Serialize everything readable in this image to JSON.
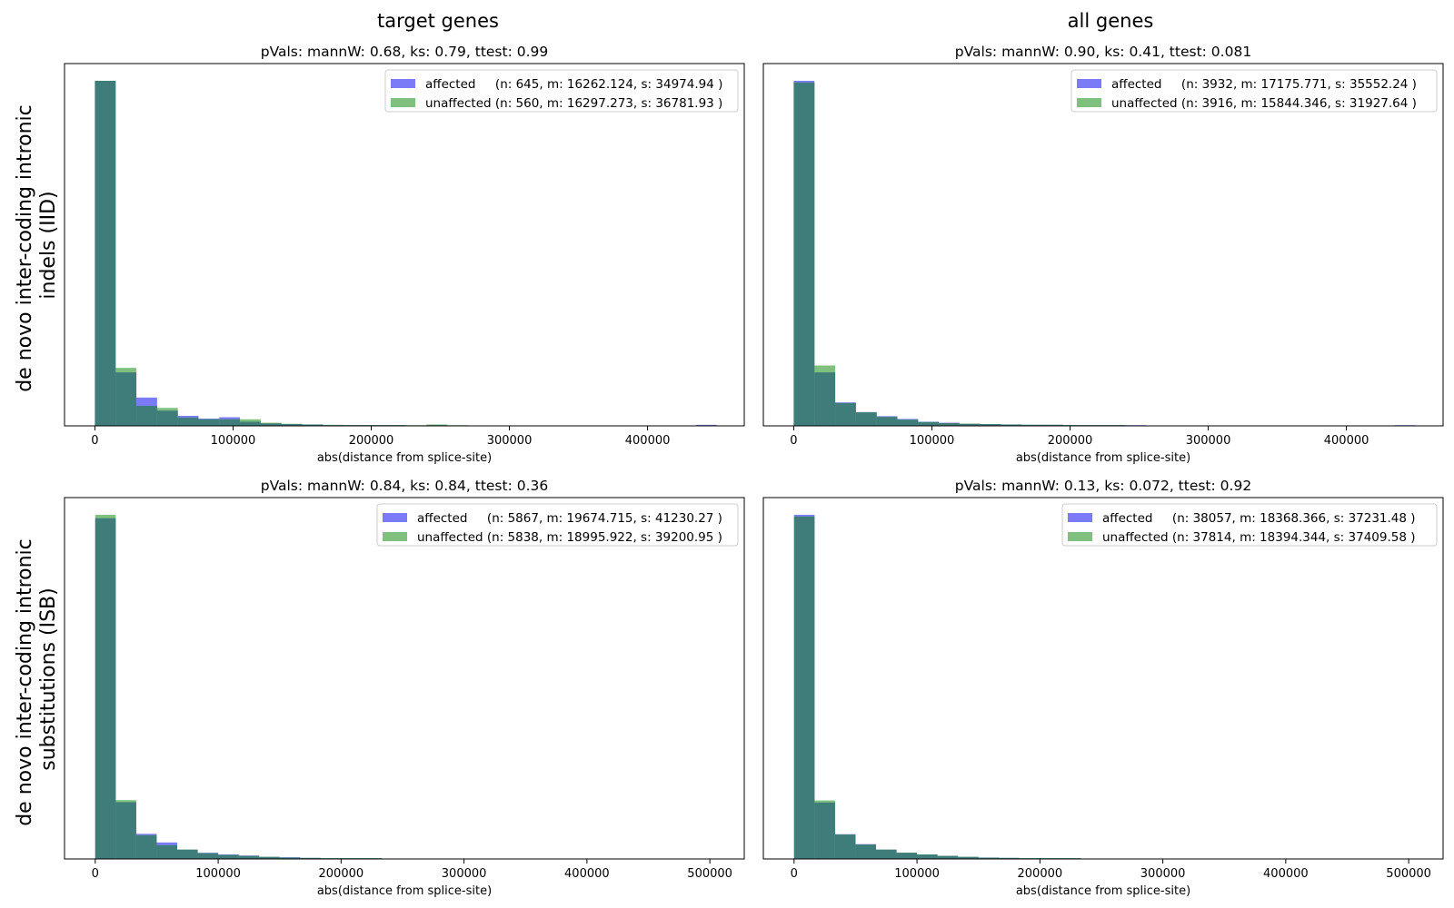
{
  "figure": {
    "col_titles": [
      "target genes",
      "all genes"
    ],
    "row_labels": [
      [
        "de novo inter-coding intronic",
        "indels (IID)"
      ],
      [
        "de novo inter-coding intronic",
        "substitutions (ISB)"
      ]
    ]
  },
  "colors": {
    "affected": "#7b7bf7",
    "unaffected": "#7fc07f",
    "overlap": "#3f7d7b"
  },
  "chart_data": [
    {
      "type": "bar",
      "title": "pVals: mannW: 0.68, ks: 0.79, ttest: 0.99",
      "xlabel": "abs(distance from splice-site)",
      "ylabel": "",
      "xlim": [
        -22000,
        470000
      ],
      "xticks": [
        0,
        100000,
        200000,
        300000,
        400000
      ],
      "bin_width": 15000,
      "ylim": [
        0,
        1.05
      ],
      "series": [
        {
          "name": "affected",
          "legend": "affected     (n: 645, m: 16262.124, s: 34974.94 )",
          "values": [
            1.0,
            0.155,
            0.082,
            0.044,
            0.029,
            0.021,
            0.025,
            0.012,
            0.007,
            0.005,
            0.004,
            0.002,
            0.002,
            0.002,
            0.002,
            0.001,
            0.002,
            0.001,
            0.001,
            0.001,
            0.001,
            0.001,
            0.0005,
            0.0005,
            0.0005,
            0.0005,
            0.0005,
            0.0005,
            0.0005,
            0.003
          ]
        },
        {
          "name": "unaffected",
          "legend": "unaffected (n: 560, m: 16297.273, s: 36781.93 )",
          "values": [
            1.0,
            0.168,
            0.058,
            0.052,
            0.024,
            0.019,
            0.019,
            0.019,
            0.009,
            0.006,
            0.004,
            0.003,
            0.002,
            0.002,
            0.002,
            0.002,
            0.004,
            0.002,
            0.001,
            0.001,
            0.001,
            0.001,
            0.0005,
            0.0005,
            0.0005,
            0.0005,
            0.0005,
            0.0005,
            0.0005,
            0.0005
          ]
        }
      ]
    },
    {
      "type": "bar",
      "title": "pVals: mannW: 0.90, ks: 0.41, ttest: 0.081",
      "xlabel": "abs(distance from splice-site)",
      "ylabel": "",
      "xlim": [
        -22000,
        470000
      ],
      "xticks": [
        0,
        100000,
        200000,
        300000,
        400000
      ],
      "bin_width": 15000,
      "ylim": [
        0,
        1.05
      ],
      "series": [
        {
          "name": "affected",
          "legend": "affected     (n: 3932, m: 17175.771, s: 35552.24 )",
          "values": [
            1.0,
            0.155,
            0.068,
            0.04,
            0.028,
            0.02,
            0.012,
            0.009,
            0.006,
            0.005,
            0.004,
            0.003,
            0.003,
            0.002,
            0.002,
            0.002,
            0.002,
            0.001,
            0.001,
            0.001,
            0.001,
            0.001,
            0.001,
            0.001,
            0.001,
            0.001,
            0.001,
            0.0005,
            0.0005,
            0.002
          ]
        },
        {
          "name": "unaffected",
          "legend": "unaffected (n: 3916, m: 15844.346, s: 31927.64 )",
          "values": [
            0.995,
            0.175,
            0.066,
            0.039,
            0.026,
            0.018,
            0.011,
            0.008,
            0.006,
            0.005,
            0.004,
            0.003,
            0.003,
            0.002,
            0.002,
            0.002,
            0.001,
            0.001,
            0.001,
            0.001,
            0.001,
            0.001,
            0.001,
            0.0005,
            0.0005,
            0.0005,
            0.0005,
            0.0005,
            0.0005,
            0.0005
          ]
        }
      ]
    },
    {
      "type": "bar",
      "title": "pVals: mannW: 0.84, ks: 0.84, ttest: 0.36",
      "xlabel": "abs(distance from splice-site)",
      "ylabel": "",
      "xlim": [
        -25000,
        528000
      ],
      "xticks": [
        0,
        100000,
        200000,
        300000,
        400000,
        500000
      ],
      "bin_width": 16667,
      "ylim": [
        0,
        1.05
      ],
      "series": [
        {
          "name": "affected",
          "legend": "affected     (n: 5867, m: 19674.715, s: 41230.27 )",
          "values": [
            0.99,
            0.165,
            0.073,
            0.048,
            0.027,
            0.018,
            0.013,
            0.01,
            0.006,
            0.005,
            0.003,
            0.002,
            0.002,
            0.002,
            0.001,
            0.001,
            0.001,
            0.001,
            0.001,
            0.001,
            0.001,
            0.0005,
            0.0005,
            0.0005,
            0.0005,
            0.0005,
            0.0005,
            0.0005,
            0.0005,
            0.0005
          ]
        },
        {
          "name": "unaffected",
          "legend": "unaffected (n: 5838, m: 18995.922, s: 39200.95 )",
          "values": [
            1.0,
            0.171,
            0.069,
            0.04,
            0.027,
            0.017,
            0.012,
            0.009,
            0.006,
            0.004,
            0.003,
            0.002,
            0.002,
            0.002,
            0.001,
            0.001,
            0.001,
            0.001,
            0.001,
            0.001,
            0.001,
            0.0005,
            0.0005,
            0.0005,
            0.0005,
            0.0005,
            0.0005,
            0.0005,
            0.0005,
            0.0005
          ]
        }
      ]
    },
    {
      "type": "bar",
      "title": "pVals: mannW: 0.13, ks: 0.072, ttest: 0.92",
      "xlabel": "abs(distance from splice-site)",
      "ylabel": "",
      "xlim": [
        -25000,
        528000
      ],
      "xticks": [
        0,
        100000,
        200000,
        300000,
        400000,
        500000
      ],
      "bin_width": 16667,
      "ylim": [
        0,
        1.05
      ],
      "series": [
        {
          "name": "affected",
          "legend": "affected     (n: 38057, m: 18368.366, s: 37231.48 )",
          "values": [
            1.0,
            0.164,
            0.072,
            0.043,
            0.027,
            0.018,
            0.013,
            0.009,
            0.006,
            0.004,
            0.003,
            0.002,
            0.002,
            0.002,
            0.001,
            0.001,
            0.001,
            0.001,
            0.001,
            0.001,
            0.0005,
            0.0005,
            0.0005,
            0.0005,
            0.0005,
            0.0005,
            0.0005,
            0.0005,
            0.0005,
            0.0005
          ]
        },
        {
          "name": "unaffected",
          "legend": "unaffected (n: 37814, m: 18394.344, s: 37409.58 )",
          "values": [
            0.995,
            0.17,
            0.071,
            0.042,
            0.027,
            0.018,
            0.013,
            0.009,
            0.006,
            0.004,
            0.003,
            0.002,
            0.002,
            0.002,
            0.001,
            0.001,
            0.001,
            0.001,
            0.001,
            0.001,
            0.0005,
            0.0005,
            0.0005,
            0.0005,
            0.0005,
            0.0005,
            0.0005,
            0.0005,
            0.0005,
            0.0005
          ]
        }
      ]
    }
  ]
}
